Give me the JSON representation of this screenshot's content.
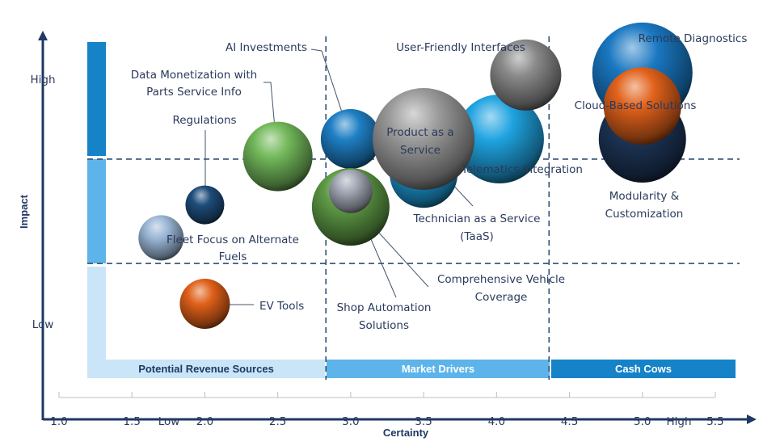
{
  "chart_data": {
    "type": "bubble",
    "title": "",
    "xlabel": "Certainty",
    "ylabel": "Impact",
    "xlim": [
      1.0,
      5.5
    ],
    "x_ticks": [
      "1.0",
      "1.5",
      "2.0",
      "2.5",
      "3.0",
      "3.5",
      "4.0",
      "4.5",
      "5.0",
      "5.5"
    ],
    "x_axis_end_labels": {
      "low": "Low",
      "high": "High"
    },
    "y_axis_labels": {
      "high": "High",
      "low": "Low"
    },
    "ylim": [
      0,
      10
    ],
    "grid": false,
    "x_dividers": [
      2.83,
      4.36
    ],
    "y_dividers": [
      6.73,
      4.04
    ],
    "bands": [
      {
        "label": "Potential Revenue Sources",
        "color": "#c9e5f7",
        "text_color": "#1f3864"
      },
      {
        "label": "Market Drivers",
        "color": "#5db4ea",
        "text_color": "#ffffff"
      },
      {
        "label": "Cash Cows",
        "color": "#1682c8",
        "text_color": "#ffffff"
      }
    ],
    "points": [
      {
        "label": [
          "Remote Diagnostics"
        ],
        "x": 5.0,
        "y": 8.96,
        "size": 6.2,
        "color": "#1a78c2"
      },
      {
        "label": [
          "Modularity &",
          "Customization"
        ],
        "x": 5.0,
        "y": 7.25,
        "size": 5.4,
        "color": "#1d3557"
      },
      {
        "label": [
          "Cloud-Based Solutions"
        ],
        "x": 5.0,
        "y": 8.1,
        "size": 4.8,
        "color": "#e2621b"
      },
      {
        "label": [
          "Telematics Integration"
        ],
        "x": 4.02,
        "y": 7.25,
        "size": 5.5,
        "color": "#1fa3e0"
      },
      {
        "label": [
          "User-Friendly Interfaces"
        ],
        "x": 4.2,
        "y": 8.9,
        "size": 4.4,
        "color": "#8a8a8a"
      },
      {
        "label": [
          "Technician as a Service",
          "(TaaS)"
        ],
        "x": 3.5,
        "y": 6.35,
        "size": 4.2,
        "color": "#1b95d0"
      },
      {
        "label": [
          "AI Investments"
        ],
        "x": 3.0,
        "y": 7.25,
        "size": 3.7,
        "color": "#1f7fc4"
      },
      {
        "label": [
          "Product as a",
          "Service"
        ],
        "x": 3.5,
        "y": 7.25,
        "size": 6.3,
        "color": "#9a9a9a"
      },
      {
        "label": [
          "Comprehensive Vehicle",
          "Coverage"
        ],
        "x": 3.0,
        "y": 5.5,
        "size": 4.8,
        "color": "#5e9a45"
      },
      {
        "label": [
          "Shop Automation",
          "Solutions"
        ],
        "x": 3.0,
        "y": 5.9,
        "size": 2.7,
        "color": "#a3a9b6"
      },
      {
        "label": [
          "Data Monetization with",
          "Parts Service Info"
        ],
        "x": 2.5,
        "y": 6.8,
        "size": 4.3,
        "color": "#72b85a"
      },
      {
        "label": [
          "Regulations"
        ],
        "x": 2.0,
        "y": 5.55,
        "size": 2.4,
        "color": "#1e4c7a"
      },
      {
        "label": [
          "Fleet Focus on Alternate",
          "Fuels"
        ],
        "x": 1.7,
        "y": 4.7,
        "size": 2.8,
        "color": "#9bb7d6"
      },
      {
        "label": [
          "EV Tools"
        ],
        "x": 2.0,
        "y": 3.0,
        "size": 3.1,
        "color": "#e0601a"
      }
    ]
  }
}
